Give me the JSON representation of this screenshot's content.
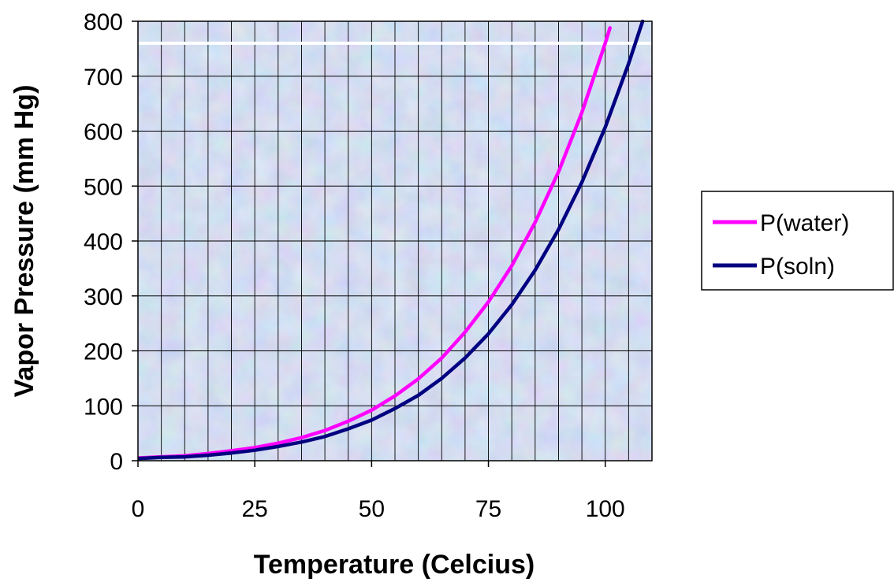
{
  "chart_data": {
    "type": "line",
    "xlabel": "Temperature (Celcius)",
    "ylabel": "Vapor Pressure (mm Hg)",
    "xlim": [
      0,
      110
    ],
    "ylim": [
      0,
      800
    ],
    "x_ticks": [
      0,
      25,
      50,
      75,
      100
    ],
    "y_ticks": [
      0,
      100,
      200,
      300,
      400,
      500,
      600,
      700,
      800
    ],
    "x_tick_labels": [
      "0",
      "25",
      "50",
      "75",
      "100"
    ],
    "y_tick_labels": [
      "0",
      "100",
      "200",
      "300",
      "400",
      "500",
      "600",
      "700",
      "800"
    ],
    "grid": true,
    "legend_position": "right",
    "reference_line": {
      "y": 760,
      "color": "#ffffff"
    },
    "plot_background": "#b9cbe8",
    "series": [
      {
        "name": "P(water)",
        "color": "#ff00ff",
        "x": [
          0,
          5,
          10,
          15,
          20,
          25,
          30,
          35,
          40,
          45,
          50,
          55,
          60,
          65,
          70,
          75,
          80,
          85,
          90,
          95,
          100,
          101
        ],
        "y": [
          5,
          7,
          9,
          13,
          18,
          24,
          32,
          42,
          55,
          72,
          92,
          118,
          149,
          187,
          234,
          289,
          355,
          434,
          526,
          634,
          760,
          788
        ]
      },
      {
        "name": "P(soln)",
        "color": "#000080",
        "x": [
          0,
          5,
          10,
          15,
          20,
          25,
          30,
          35,
          40,
          45,
          50,
          55,
          60,
          65,
          70,
          75,
          80,
          85,
          90,
          95,
          100,
          105,
          108
        ],
        "y": [
          4,
          6,
          7,
          10,
          14,
          19,
          26,
          34,
          44,
          58,
          74,
          95,
          119,
          150,
          187,
          231,
          284,
          347,
          421,
          507,
          607,
          723,
          800
        ]
      }
    ]
  }
}
